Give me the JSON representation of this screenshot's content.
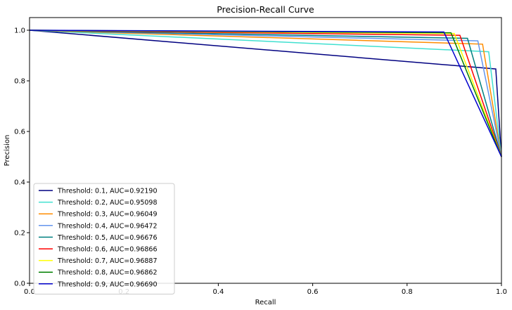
{
  "chart_data": {
    "type": "line",
    "title": "Precision-Recall Curve",
    "xlabel": "Recall",
    "ylabel": "Precision",
    "xlim": [
      0,
      1
    ],
    "ylim": [
      0,
      1.05
    ],
    "xticks": [
      "0.0",
      "0.2",
      "0.4",
      "0.6",
      "0.8",
      "1.0"
    ],
    "yticks": [
      "0.0",
      "0.2",
      "0.4",
      "0.6",
      "0.8",
      "1.0"
    ],
    "grid": false,
    "legend_position": "lower-left",
    "series": [
      {
        "name": "Threshold: 0.1, AUC=0.92190",
        "color": "#000080",
        "x": [
          0,
          0.988,
          1.0
        ],
        "y": [
          1.0,
          0.847,
          0.5
        ]
      },
      {
        "name": "Threshold: 0.2, AUC=0.95098",
        "color": "#40e0d0",
        "x": [
          0,
          0.973,
          1.0
        ],
        "y": [
          1.0,
          0.915,
          0.5
        ]
      },
      {
        "name": "Threshold: 0.3, AUC=0.96049",
        "color": "#ff8c00",
        "x": [
          0,
          0.96,
          1.0
        ],
        "y": [
          1.0,
          0.945,
          0.5
        ]
      },
      {
        "name": "Threshold: 0.4, AUC=0.96472",
        "color": "#6495ed",
        "x": [
          0,
          0.95,
          1.0
        ],
        "y": [
          1.0,
          0.958,
          0.5
        ]
      },
      {
        "name": "Threshold: 0.5, AUC=0.96676",
        "color": "#008080",
        "x": [
          0,
          0.928,
          1.0
        ],
        "y": [
          1.0,
          0.968,
          0.5
        ]
      },
      {
        "name": "Threshold: 0.6, AUC=0.96866",
        "color": "#ff0000",
        "x": [
          0,
          0.912,
          1.0
        ],
        "y": [
          1.0,
          0.98,
          0.5
        ]
      },
      {
        "name": "Threshold: 0.7, AUC=0.96887",
        "color": "#ffff00",
        "x": [
          0,
          0.9,
          1.0
        ],
        "y": [
          1.0,
          0.987,
          0.5
        ]
      },
      {
        "name": "Threshold: 0.8, AUC=0.96862",
        "color": "#008000",
        "x": [
          0,
          0.893,
          1.0
        ],
        "y": [
          1.0,
          0.99,
          0.5
        ]
      },
      {
        "name": "Threshold: 0.9, AUC=0.96690",
        "color": "#0000cd",
        "x": [
          0,
          0.878,
          1.0
        ],
        "y": [
          1.0,
          0.993,
          0.5
        ]
      }
    ]
  }
}
